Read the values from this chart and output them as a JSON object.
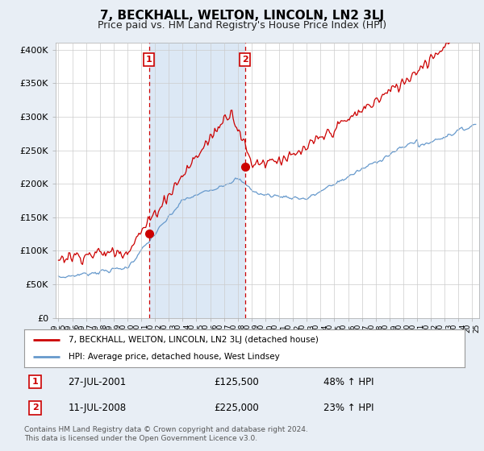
{
  "title": "7, BECKHALL, WELTON, LINCOLN, LN2 3LJ",
  "subtitle": "Price paid vs. HM Land Registry's House Price Index (HPI)",
  "ylabel_ticks": [
    "£0",
    "£50K",
    "£100K",
    "£150K",
    "£200K",
    "£250K",
    "£300K",
    "£350K",
    "£400K"
  ],
  "ytick_values": [
    0,
    50000,
    100000,
    150000,
    200000,
    250000,
    300000,
    350000,
    400000
  ],
  "ylim": [
    0,
    410000
  ],
  "xlim_start": 1994.8,
  "xlim_end": 2025.5,
  "sale1": {
    "date": "27-JUL-2001",
    "year": 2001.56,
    "price": 125500,
    "label": "1",
    "pct": "48% ↑ HPI"
  },
  "sale2": {
    "date": "11-JUL-2008",
    "year": 2008.53,
    "price": 225000,
    "label": "2",
    "pct": "23% ↑ HPI"
  },
  "legend_property": "7, BECKHALL, WELTON, LINCOLN, LN2 3LJ (detached house)",
  "legend_hpi": "HPI: Average price, detached house, West Lindsey",
  "footer": "Contains HM Land Registry data © Crown copyright and database right 2024.\nThis data is licensed under the Open Government Licence v3.0.",
  "line_color_property": "#cc0000",
  "line_color_hpi": "#6699cc",
  "shade_color": "#dce8f5",
  "vline_color": "#cc0000",
  "bg_color": "#e8eef5",
  "plot_bg": "#ffffff",
  "grid_color": "#cccccc",
  "title_fontsize": 11,
  "subtitle_fontsize": 9
}
